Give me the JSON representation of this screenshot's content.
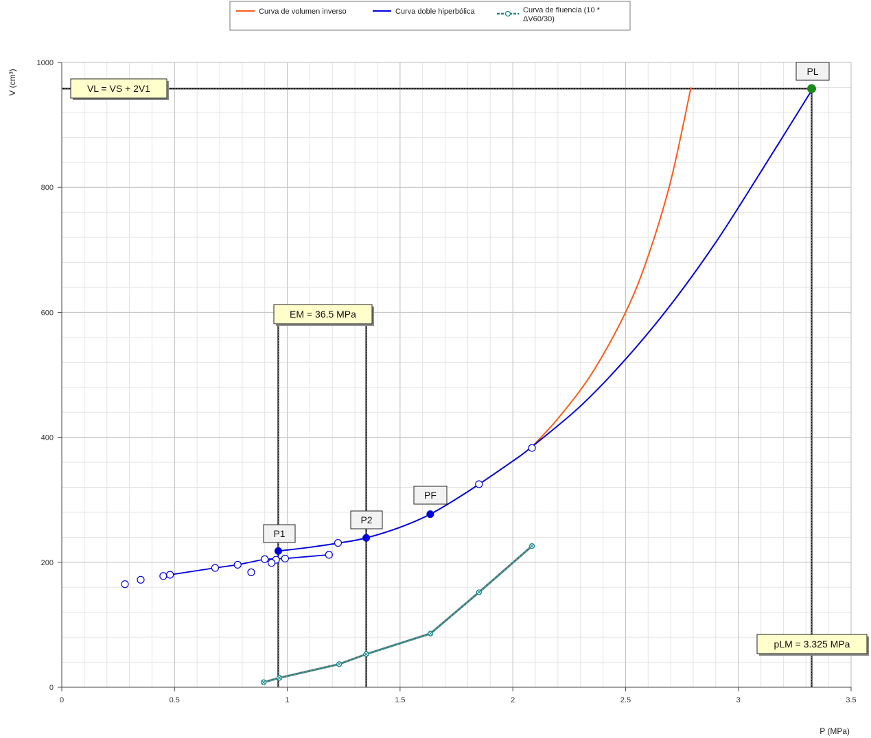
{
  "chart_data": {
    "type": "line",
    "xlabel": "P (MPa)",
    "ylabel": "V (cm³)",
    "xlim": [
      0,
      3.5
    ],
    "ylim": [
      0,
      1000
    ],
    "x_ticks": [
      "0",
      "0.5",
      "1",
      "1.5",
      "2",
      "2.5",
      "3",
      "3.5"
    ],
    "y_ticks": [
      "0",
      "200",
      "400",
      "600",
      "800",
      "1000"
    ],
    "grid": true,
    "legend_position": "top",
    "legend": [
      {
        "label": "Curva de volumen inverso",
        "color": "#ff5a14",
        "marker": "none"
      },
      {
        "label": "Curva doble hiperbólica",
        "color": "#0000dd",
        "marker": "none"
      },
      {
        "label": "Curva de fluencia  (10 * ΔV60/30)",
        "color": "#118888",
        "marker": "x-circle"
      }
    ],
    "series": [
      {
        "name": "Curva de volumen inverso",
        "x": [
          2.085,
          2.2,
          2.35,
          2.5,
          2.6,
          2.7,
          2.79
        ],
        "y": [
          385,
          430,
          502,
          600,
          690,
          810,
          960
        ]
      },
      {
        "name": "Curva doble hiperbólica",
        "x": [
          0.96,
          1.1,
          1.25,
          1.35,
          1.5,
          1.634,
          1.8,
          2.0,
          2.085,
          2.3,
          2.5,
          2.7,
          2.9,
          3.1,
          3.33
        ],
        "y": [
          218,
          224,
          232,
          239,
          256,
          277,
          313,
          362,
          385,
          450,
          525,
          612,
          712,
          825,
          958
        ]
      },
      {
        "name": "Curva de fluencia  (10 * ΔV60/30)",
        "x": [
          0.895,
          0.965,
          1.23,
          1.35,
          1.635,
          1.85,
          2.085
        ],
        "y": [
          8,
          15,
          37,
          53,
          86,
          152,
          226
        ]
      }
    ],
    "measured_points": {
      "unloading": {
        "x": [
          0.28,
          0.35,
          0.45,
          0.48,
          0.68,
          0.78,
          0.9,
          0.95,
          0.99
        ],
        "y": [
          165,
          172,
          178,
          180,
          191,
          196,
          205,
          204,
          206
        ]
      },
      "loading": {
        "x": [
          0.84,
          0.93,
          1.185,
          1.225,
          1.85,
          2.085
        ],
        "y": [
          184,
          199,
          212,
          231,
          325,
          383
        ]
      }
    },
    "key_points": [
      {
        "label": "P1",
        "x": 0.96,
        "y": 218
      },
      {
        "label": "P2",
        "x": 1.35,
        "y": 239
      },
      {
        "label": "PF",
        "x": 1.634,
        "y": 277
      },
      {
        "label": "PL",
        "x": 3.325,
        "y": 958
      }
    ],
    "reference_lines": {
      "p1_x": 0.96,
      "p2_x": 1.35,
      "pl_x": 3.325,
      "vl_y": 958
    },
    "annotations": {
      "vl": "VL = VS + 2V1",
      "em": "EM = 36.5 MPa",
      "plm": "pLM = 3.325 MPa"
    },
    "colors": {
      "inverse": "#ff5a14",
      "hyperbolic": "#0000dd",
      "creep": "#118888",
      "pl_point": "#1a8a1a",
      "box_fill": "#ffffcc"
    }
  }
}
